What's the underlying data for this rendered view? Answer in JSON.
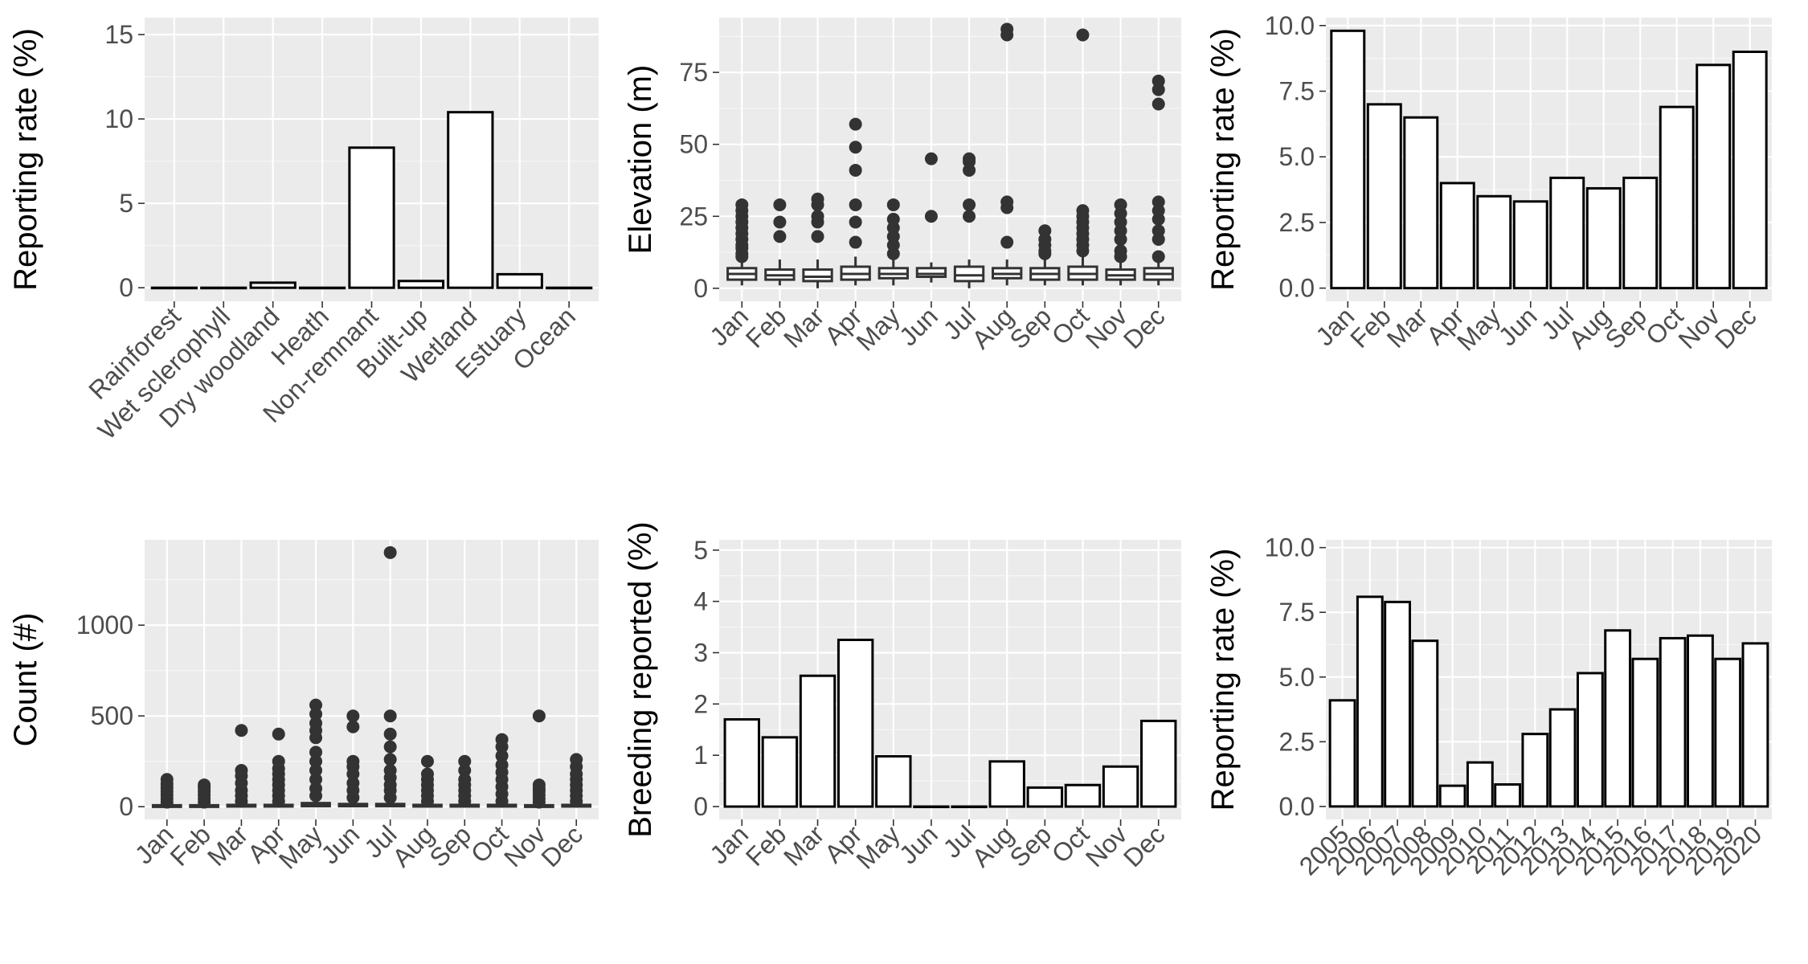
{
  "chart_data": [
    {
      "id": "habitat",
      "type": "bar",
      "categories": [
        "Rainforest",
        "Wet sclerophyll",
        "Dry woodland",
        "Heath",
        "Non-remnant",
        "Built-up",
        "Wetland",
        "Estuary",
        "Ocean"
      ],
      "values": [
        0.0,
        0.0,
        0.3,
        0.0,
        8.3,
        0.4,
        10.4,
        0.8,
        0.0
      ],
      "xlabel": "",
      "ylabel": "Reporting rate (%)",
      "ylim": [
        -0.8,
        16
      ],
      "yticks": [
        0,
        5,
        10,
        15
      ],
      "grid": true,
      "rotate_x_labels": true
    },
    {
      "id": "elevation",
      "type": "boxplot",
      "categories": [
        "Jan",
        "Feb",
        "Mar",
        "Apr",
        "May",
        "Jun",
        "Jul",
        "Aug",
        "Sep",
        "Oct",
        "Nov",
        "Dec"
      ],
      "boxes": [
        {
          "low": 1,
          "q1": 3,
          "median": 5,
          "q3": 7,
          "high": 10,
          "outliers": [
            11,
            12,
            14,
            15,
            17,
            19,
            21,
            23,
            25,
            27,
            29
          ]
        },
        {
          "low": 1,
          "q1": 3,
          "median": 4.5,
          "q3": 6.5,
          "high": 10,
          "outliers": [
            18,
            23,
            29
          ]
        },
        {
          "low": 0,
          "q1": 2.5,
          "median": 4,
          "q3": 6.5,
          "high": 10,
          "outliers": [
            18,
            23,
            25,
            29,
            31
          ]
        },
        {
          "low": 1,
          "q1": 3,
          "median": 5,
          "q3": 7.5,
          "high": 11,
          "outliers": [
            16,
            23,
            29,
            41,
            49,
            57
          ]
        },
        {
          "low": 1,
          "q1": 3.5,
          "median": 5,
          "q3": 7,
          "high": 11,
          "outliers": [
            12,
            15,
            18,
            21,
            24,
            29
          ]
        },
        {
          "low": 2,
          "q1": 4,
          "median": 5,
          "q3": 7,
          "high": 9,
          "outliers": [
            25,
            45
          ]
        },
        {
          "low": 0,
          "q1": 2.5,
          "median": 4.5,
          "q3": 7.5,
          "high": 10,
          "outliers": [
            25,
            29,
            41,
            44,
            45
          ]
        },
        {
          "low": 1,
          "q1": 3.5,
          "median": 5,
          "q3": 7,
          "high": 10,
          "outliers": [
            16,
            28,
            30,
            88,
            90
          ]
        },
        {
          "low": 1,
          "q1": 3,
          "median": 5,
          "q3": 7,
          "high": 10,
          "outliers": [
            12,
            13,
            15,
            17,
            20
          ]
        },
        {
          "low": 1,
          "q1": 3,
          "median": 5,
          "q3": 7.5,
          "high": 11,
          "outliers": [
            13,
            15,
            17,
            19,
            21,
            23,
            25,
            27,
            88
          ]
        },
        {
          "low": 1,
          "q1": 3,
          "median": 4.5,
          "q3": 6.5,
          "high": 10,
          "outliers": [
            11,
            13,
            17,
            20,
            23,
            26,
            29
          ]
        },
        {
          "low": 1,
          "q1": 3,
          "median": 5,
          "q3": 7,
          "high": 10,
          "outliers": [
            11,
            17,
            20,
            24,
            27,
            30,
            64,
            69,
            72
          ]
        }
      ],
      "xlabel": "",
      "ylabel": "Elevation (m)",
      "ylim": [
        -4.5,
        94
      ],
      "yticks": [
        0,
        25,
        50,
        75
      ],
      "grid": true,
      "rotate_x_labels": true
    },
    {
      "id": "monthly-rate",
      "type": "bar",
      "categories": [
        "Jan",
        "Feb",
        "Mar",
        "Apr",
        "May",
        "Jun",
        "Jul",
        "Aug",
        "Sep",
        "Oct",
        "Nov",
        "Dec"
      ],
      "values": [
        9.8,
        7.0,
        6.5,
        4.0,
        3.5,
        3.3,
        4.2,
        3.8,
        4.2,
        6.9,
        8.5,
        9.0
      ],
      "xlabel": "",
      "ylabel": "Reporting rate (%)",
      "ylim": [
        -0.5,
        10.3
      ],
      "yticks": [
        0,
        2.5,
        5,
        7.5,
        10
      ],
      "ytick_labels": [
        "0.0",
        "2.5",
        "5.0",
        "7.5",
        "10.0"
      ],
      "grid": true,
      "rotate_x_labels": true
    },
    {
      "id": "count",
      "type": "boxplot",
      "categories": [
        "Jan",
        "Feb",
        "Mar",
        "Apr",
        "May",
        "Jun",
        "Jul",
        "Aug",
        "Sep",
        "Oct",
        "Nov",
        "Dec"
      ],
      "boxes": [
        {
          "low": 1,
          "q1": 2,
          "median": 4,
          "q3": 8,
          "high": 15,
          "outliers": [
            25,
            45,
            65,
            85,
            105,
            125,
            150
          ]
        },
        {
          "low": 1,
          "q1": 2,
          "median": 4,
          "q3": 8,
          "high": 15,
          "outliers": [
            25,
            45,
            65,
            85,
            105,
            120
          ]
        },
        {
          "low": 1,
          "q1": 2,
          "median": 5,
          "q3": 10,
          "high": 20,
          "outliers": [
            30,
            60,
            90,
            130,
            170,
            200,
            420
          ]
        },
        {
          "low": 1,
          "q1": 2,
          "median": 5,
          "q3": 10,
          "high": 20,
          "outliers": [
            30,
            60,
            90,
            120,
            150,
            180,
            210,
            250,
            400
          ]
        },
        {
          "low": 1,
          "q1": 3,
          "median": 8,
          "q3": 20,
          "high": 40,
          "outliers": [
            60,
            100,
            150,
            200,
            250,
            300,
            380,
            420,
            460,
            510,
            560
          ]
        },
        {
          "low": 1,
          "q1": 3,
          "median": 6,
          "q3": 15,
          "high": 30,
          "outliers": [
            50,
            90,
            130,
            180,
            220,
            250,
            440,
            500
          ]
        },
        {
          "low": 1,
          "q1": 3,
          "median": 6,
          "q3": 15,
          "high": 30,
          "outliers": [
            50,
            90,
            120,
            160,
            200,
            260,
            330,
            400,
            500,
            1400
          ]
        },
        {
          "low": 1,
          "q1": 2,
          "median": 5,
          "q3": 10,
          "high": 20,
          "outliers": [
            30,
            60,
            90,
            120,
            150,
            180,
            250
          ]
        },
        {
          "low": 1,
          "q1": 2,
          "median": 5,
          "q3": 10,
          "high": 20,
          "outliers": [
            30,
            60,
            90,
            120,
            150,
            200,
            250
          ]
        },
        {
          "low": 1,
          "q1": 2,
          "median": 5,
          "q3": 10,
          "high": 20,
          "outliers": [
            30,
            70,
            110,
            150,
            190,
            230,
            280,
            330,
            370
          ]
        },
        {
          "low": 1,
          "q1": 2,
          "median": 4,
          "q3": 8,
          "high": 15,
          "outliers": [
            25,
            45,
            65,
            85,
            100,
            120,
            500
          ]
        },
        {
          "low": 1,
          "q1": 2,
          "median": 5,
          "q3": 10,
          "high": 20,
          "outliers": [
            30,
            60,
            90,
            120,
            150,
            180,
            220,
            260
          ]
        }
      ],
      "xlabel": "",
      "ylabel": "Count (#)",
      "ylim": [
        -70,
        1470
      ],
      "yticks": [
        0,
        500,
        1000
      ],
      "grid": true,
      "rotate_x_labels": true
    },
    {
      "id": "breeding",
      "type": "bar",
      "categories": [
        "Jan",
        "Feb",
        "Mar",
        "Apr",
        "May",
        "Jun",
        "Jul",
        "Aug",
        "Sep",
        "Oct",
        "Nov",
        "Dec"
      ],
      "values": [
        1.7,
        1.35,
        2.55,
        3.25,
        0.98,
        0.0,
        0.0,
        0.88,
        0.37,
        0.42,
        0.78,
        1.67
      ],
      "xlabel": "",
      "ylabel": "Breeding reported (%)",
      "ylim": [
        -0.25,
        5.2
      ],
      "yticks": [
        0,
        1,
        2,
        3,
        4,
        5
      ],
      "grid": true,
      "rotate_x_labels": true
    },
    {
      "id": "yearly-rate",
      "type": "bar",
      "categories": [
        "2005",
        "2006",
        "2007",
        "2008",
        "2009",
        "2010",
        "2011",
        "2012",
        "2013",
        "2014",
        "2015",
        "2016",
        "2017",
        "2018",
        "2019",
        "2020"
      ],
      "values": [
        4.1,
        8.1,
        7.9,
        6.4,
        0.8,
        1.7,
        0.85,
        2.8,
        3.75,
        5.15,
        6.8,
        5.7,
        6.5,
        6.6,
        5.7,
        6.3
      ],
      "xlabel": "",
      "ylabel": "Reporting rate (%)",
      "ylim": [
        -0.5,
        10.3
      ],
      "yticks": [
        0,
        2.5,
        5,
        7.5,
        10
      ],
      "ytick_labels": [
        "0.0",
        "2.5",
        "5.0",
        "7.5",
        "10.0"
      ],
      "grid": true,
      "rotate_x_labels": true
    }
  ]
}
